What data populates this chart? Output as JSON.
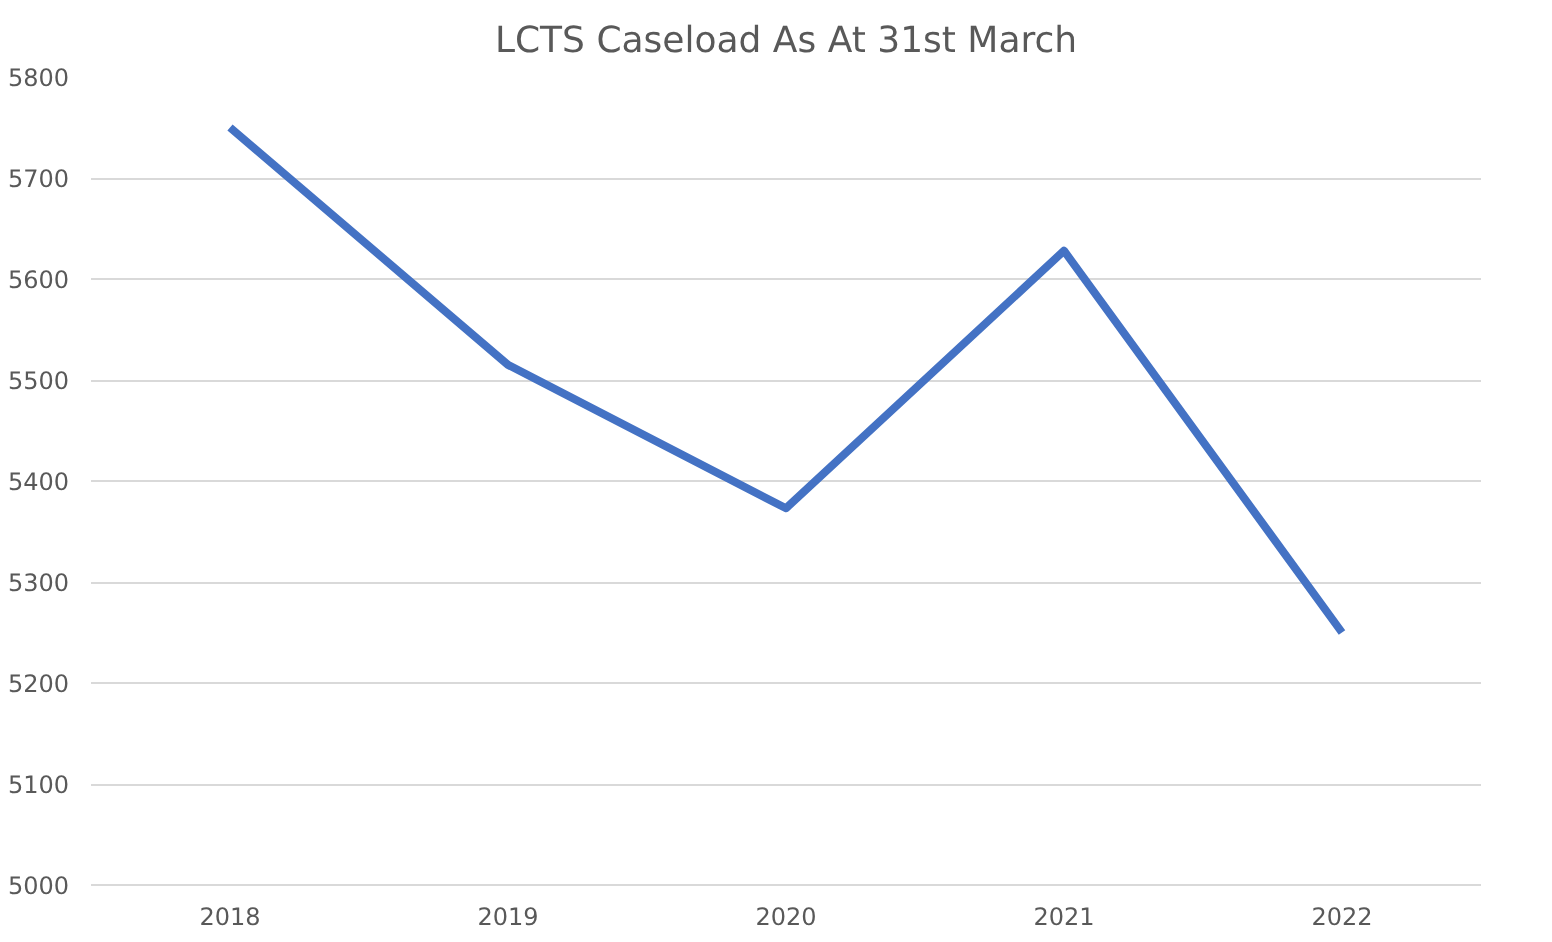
{
  "chart_data": {
    "type": "line",
    "title": "LCTS Caseload As At 31st March",
    "categories": [
      "2018",
      "2019",
      "2020",
      "2021",
      "2022"
    ],
    "series": [
      {
        "color": "#4472c4",
        "values": [
          5750,
          5515,
          5373,
          5628,
          5250
        ]
      }
    ],
    "ylim": [
      5000,
      5800
    ],
    "yticks": [
      5000,
      5100,
      5200,
      5300,
      5400,
      5500,
      5600,
      5700,
      5800
    ],
    "grid": "y",
    "marker": "none",
    "line_style": "solid"
  }
}
